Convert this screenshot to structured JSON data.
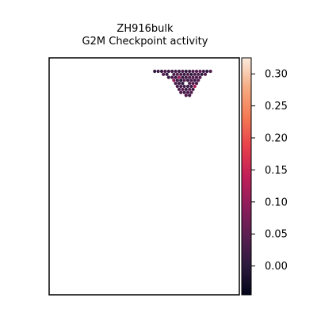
{
  "chart_data": {
    "type": "heatmap",
    "subtype": "spatial-spot-plot",
    "title": [
      "ZH916bulk",
      "G2M Checkpoint activity"
    ],
    "xlabel": "",
    "ylabel": "",
    "colormap": "rocket",
    "colorbar": {
      "vmin": -0.045,
      "vmax": 0.325,
      "ticks": [
        0.0,
        0.05,
        0.1,
        0.15,
        0.2,
        0.25,
        0.3
      ],
      "tick_labels": [
        "0.00",
        "0.05",
        "0.10",
        "0.15",
        "0.20",
        "0.25",
        "0.30"
      ]
    },
    "colors": {
      "rocket_stops": [
        "#03051a",
        "#2d1a3f",
        "#5b1e51",
        "#8e1d5b",
        "#c11f58",
        "#e8404b",
        "#f47a54",
        "#f6ab83",
        "#faebdd"
      ]
    },
    "grid": false,
    "legend": "colorbar-right"
  }
}
